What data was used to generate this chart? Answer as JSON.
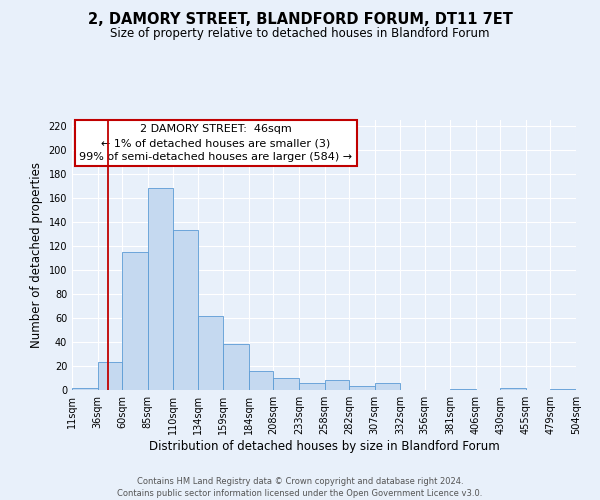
{
  "title": "2, DAMORY STREET, BLANDFORD FORUM, DT11 7ET",
  "subtitle": "Size of property relative to detached houses in Blandford Forum",
  "xlabel": "Distribution of detached houses by size in Blandford Forum",
  "ylabel": "Number of detached properties",
  "bar_color": "#c5d9f0",
  "bar_edge_color": "#5b9bd5",
  "background_color": "#e8f0fa",
  "grid_color": "#ffffff",
  "vline_x": 46,
  "vline_color": "#c00000",
  "annotation_text": "2 DAMORY STREET:  46sqm\n← 1% of detached houses are smaller (3)\n99% of semi-detached houses are larger (584) →",
  "annotation_box_color": "#ffffff",
  "annotation_box_edge": "#c00000",
  "footer_text": "Contains HM Land Registry data © Crown copyright and database right 2024.\nContains public sector information licensed under the Open Government Licence v3.0.",
  "bin_edges": [
    11,
    36,
    60,
    85,
    110,
    134,
    159,
    184,
    208,
    233,
    258,
    282,
    307,
    332,
    356,
    381,
    406,
    430,
    455,
    479,
    504
  ],
  "bin_values": [
    2,
    23,
    115,
    168,
    133,
    62,
    38,
    16,
    10,
    6,
    8,
    3,
    6,
    0,
    0,
    1,
    0,
    2,
    0,
    1
  ],
  "ylim": [
    0,
    225
  ],
  "yticks": [
    0,
    20,
    40,
    60,
    80,
    100,
    120,
    140,
    160,
    180,
    200,
    220
  ],
  "xtick_labels": [
    "11sqm",
    "36sqm",
    "60sqm",
    "85sqm",
    "110sqm",
    "134sqm",
    "159sqm",
    "184sqm",
    "208sqm",
    "233sqm",
    "258sqm",
    "282sqm",
    "307sqm",
    "332sqm",
    "356sqm",
    "381sqm",
    "406sqm",
    "430sqm",
    "455sqm",
    "479sqm",
    "504sqm"
  ],
  "title_fontsize": 10.5,
  "subtitle_fontsize": 8.5,
  "ylabel_fontsize": 8.5,
  "xlabel_fontsize": 8.5,
  "tick_fontsize": 7,
  "annotation_fontsize": 8,
  "footer_fontsize": 6
}
